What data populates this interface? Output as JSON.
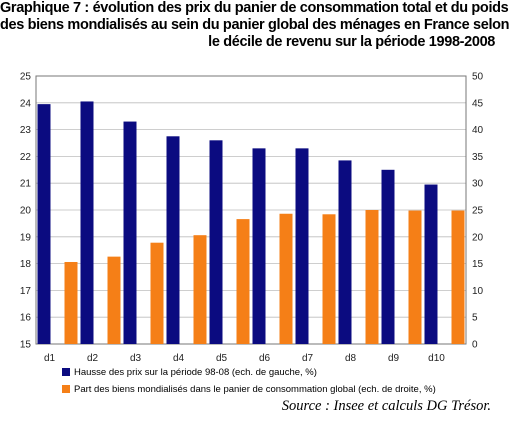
{
  "title_lines": [
    "Graphique 7 : évolution des prix du panier de consommation total et du poids",
    "des biens mondialisés au sein du panier global des ménages en France selon",
    "le décile de revenu sur la période 1998-2008"
  ],
  "source": "Source : Insee et calculs DG Trésor.",
  "chart_data": {
    "type": "bar",
    "categories": [
      "d1",
      "d2",
      "d3",
      "d4",
      "d5",
      "d6",
      "d7",
      "d8",
      "d9",
      "d10"
    ],
    "series": [
      {
        "name": "Hausse des prix sur la période 98-08 (ech. de gauche, %)",
        "axis": "left",
        "color": "#0b0b80",
        "values": [
          23.95,
          24.05,
          23.3,
          22.75,
          22.6,
          22.3,
          22.3,
          21.85,
          21.5,
          20.95
        ]
      },
      {
        "name": "Part des biens mondialisés dans le panier de consommation global (ech. de droite, %)",
        "axis": "right",
        "color": "#f57f17",
        "values": [
          15.3,
          16.3,
          18.9,
          20.3,
          23.3,
          24.3,
          24.2,
          25.0,
          24.9,
          24.9
        ]
      }
    ],
    "y_left": {
      "min": 15,
      "max": 25,
      "ticks": [
        15,
        16,
        17,
        18,
        19,
        20,
        21,
        22,
        23,
        24,
        25
      ]
    },
    "y_right": {
      "min": 0,
      "max": 50,
      "ticks": [
        0,
        5,
        10,
        15,
        20,
        25,
        30,
        35,
        40,
        45,
        50
      ]
    },
    "grid": true,
    "legend_position": "bottom"
  }
}
